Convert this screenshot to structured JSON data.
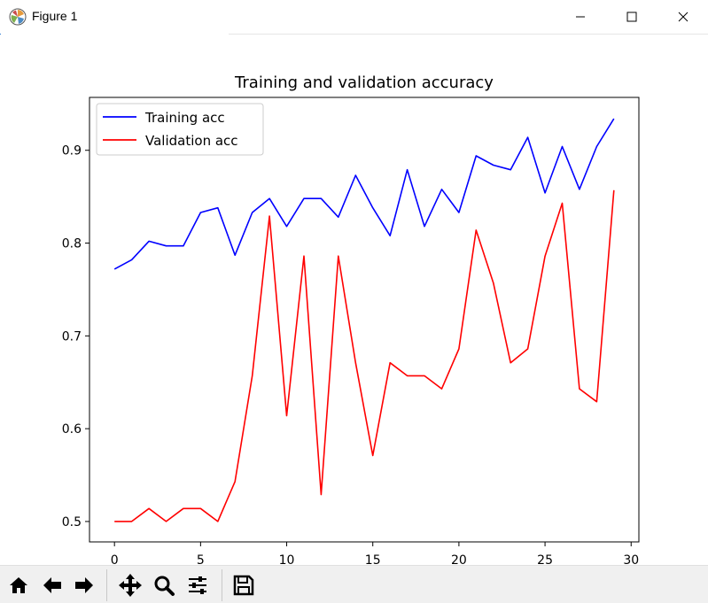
{
  "window": {
    "title": "Figure 1",
    "icons": {
      "app": "matplotlib-icon",
      "minimize": "minimize-icon",
      "maximize": "maximize-icon",
      "close": "close-icon"
    }
  },
  "toolbar": {
    "buttons": [
      {
        "name": "home-button",
        "icon": "home-icon"
      },
      {
        "name": "back-button",
        "icon": "arrow-left-icon"
      },
      {
        "name": "forward-button",
        "icon": "arrow-right-icon"
      },
      {
        "name": "pan-button",
        "icon": "move-icon"
      },
      {
        "name": "zoom-button",
        "icon": "search-icon"
      },
      {
        "name": "configure-subplots-button",
        "icon": "sliders-icon"
      },
      {
        "name": "save-button",
        "icon": "save-icon"
      }
    ]
  },
  "chart_data": {
    "type": "line",
    "title": "Training and validation accuracy",
    "xlabel": "",
    "ylabel": "",
    "xlim": [
      -1.45,
      30.45
    ],
    "ylim": [
      0.478,
      0.957
    ],
    "xticks": [
      0,
      5,
      10,
      15,
      20,
      25,
      30
    ],
    "yticks": [
      0.5,
      0.6,
      0.7,
      0.8,
      0.9
    ],
    "xtick_labels": [
      "0",
      "5",
      "10",
      "15",
      "20",
      "25",
      "30"
    ],
    "ytick_labels": [
      "0.5",
      "0.6",
      "0.7",
      "0.8",
      "0.9"
    ],
    "grid": false,
    "legend_position": "top-left",
    "x": [
      0,
      1,
      2,
      3,
      4,
      5,
      6,
      7,
      8,
      9,
      10,
      11,
      12,
      13,
      14,
      15,
      16,
      17,
      18,
      19,
      20,
      21,
      22,
      23,
      24,
      25,
      26,
      27,
      28,
      29
    ],
    "series": [
      {
        "name": "Training acc",
        "color": "#0000ff",
        "values": [
          0.772,
          0.782,
          0.802,
          0.797,
          0.797,
          0.833,
          0.838,
          0.787,
          0.833,
          0.848,
          0.818,
          0.848,
          0.848,
          0.828,
          0.873,
          0.838,
          0.808,
          0.879,
          0.818,
          0.858,
          0.833,
          0.894,
          0.884,
          0.879,
          0.914,
          0.854,
          0.904,
          0.858,
          0.904,
          0.934
        ]
      },
      {
        "name": "Validation acc",
        "color": "#ff0000",
        "values": [
          0.5,
          0.5,
          0.514,
          0.5,
          0.514,
          0.514,
          0.5,
          0.543,
          0.657,
          0.829,
          0.614,
          0.786,
          0.529,
          0.786,
          0.671,
          0.571,
          0.671,
          0.657,
          0.657,
          0.643,
          0.686,
          0.814,
          0.757,
          0.671,
          0.686,
          0.786,
          0.843,
          0.643,
          0.629,
          0.857
        ]
      }
    ]
  }
}
